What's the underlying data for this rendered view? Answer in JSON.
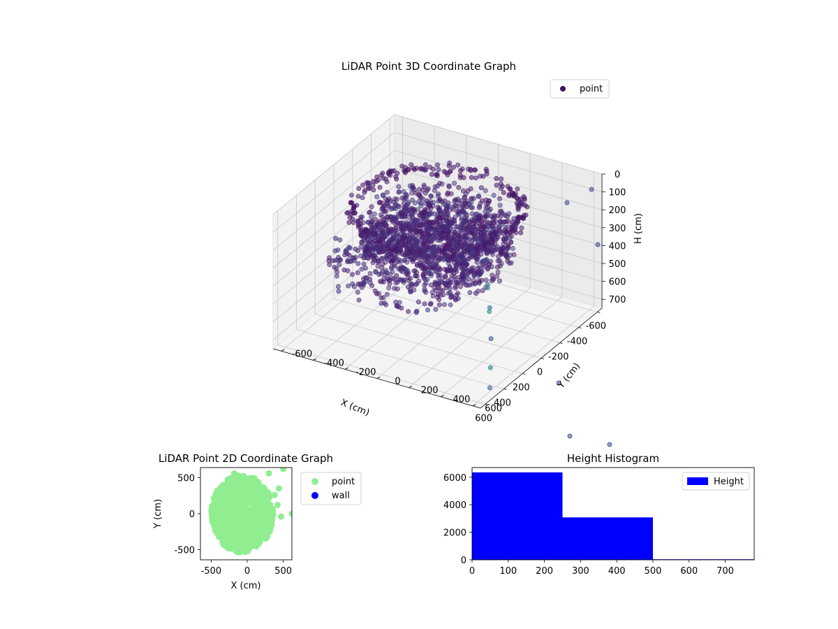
{
  "chart_data": [
    {
      "type": "scatter3d",
      "title": "LiDAR Point 3D Coordinate Graph",
      "xlabel": "X (cm)",
      "ylabel": "Y (cm)",
      "zlabel": "H (cm)",
      "x_ticks": [
        -600,
        -400,
        -200,
        0,
        200,
        400,
        600
      ],
      "y_ticks": [
        -600,
        -400,
        -200,
        0,
        200,
        400,
        600
      ],
      "z_ticks": [
        0,
        100,
        200,
        300,
        400,
        500,
        600,
        700
      ],
      "xlim": [
        -650,
        650
      ],
      "ylim": [
        -650,
        650
      ],
      "zlim": [
        0,
        750
      ],
      "z_inverted": true,
      "grid": true,
      "legend": {
        "placement": "upper-right",
        "entries": [
          {
            "label": "point",
            "color": "#44105a"
          }
        ]
      },
      "colormap": "viridis",
      "series": [
        {
          "name": "point",
          "note_density": "thousands of points"
        }
      ]
    },
    {
      "type": "scatter",
      "title": "LiDAR Point 2D Coordinate Graph",
      "xlabel": "X (cm)",
      "ylabel": "Y (cm)",
      "x_ticks": [
        -500,
        0,
        500
      ],
      "y_ticks": [
        -500,
        0,
        500
      ],
      "xlim": [
        -650,
        620
      ],
      "ylim": [
        -640,
        640
      ],
      "grid": false,
      "legend": {
        "placement": "outside-right",
        "entries": [
          {
            "label": "point",
            "color": "#90ee90"
          },
          {
            "label": "wall",
            "color": "#0000ff"
          }
        ]
      },
      "series": [
        {
          "name": "point",
          "color": "#90ee90"
        },
        {
          "name": "wall",
          "color": "#0000ff"
        }
      ]
    },
    {
      "type": "bar",
      "title": "Height Histogram",
      "bins": [
        [
          0,
          250
        ],
        [
          250,
          500
        ],
        [
          500,
          780
        ]
      ],
      "values": [
        6350,
        3080,
        40
      ],
      "x_ticks": [
        0,
        100,
        200,
        300,
        400,
        500,
        600,
        700
      ],
      "y_ticks": [
        0,
        2000,
        4000,
        6000
      ],
      "xlim": [
        0,
        780
      ],
      "ylim": [
        0,
        6700
      ],
      "color": "#0000ff",
      "legend": {
        "placement": "upper-right",
        "entries": [
          {
            "label": "Height",
            "color": "#0000ff"
          }
        ]
      }
    }
  ]
}
